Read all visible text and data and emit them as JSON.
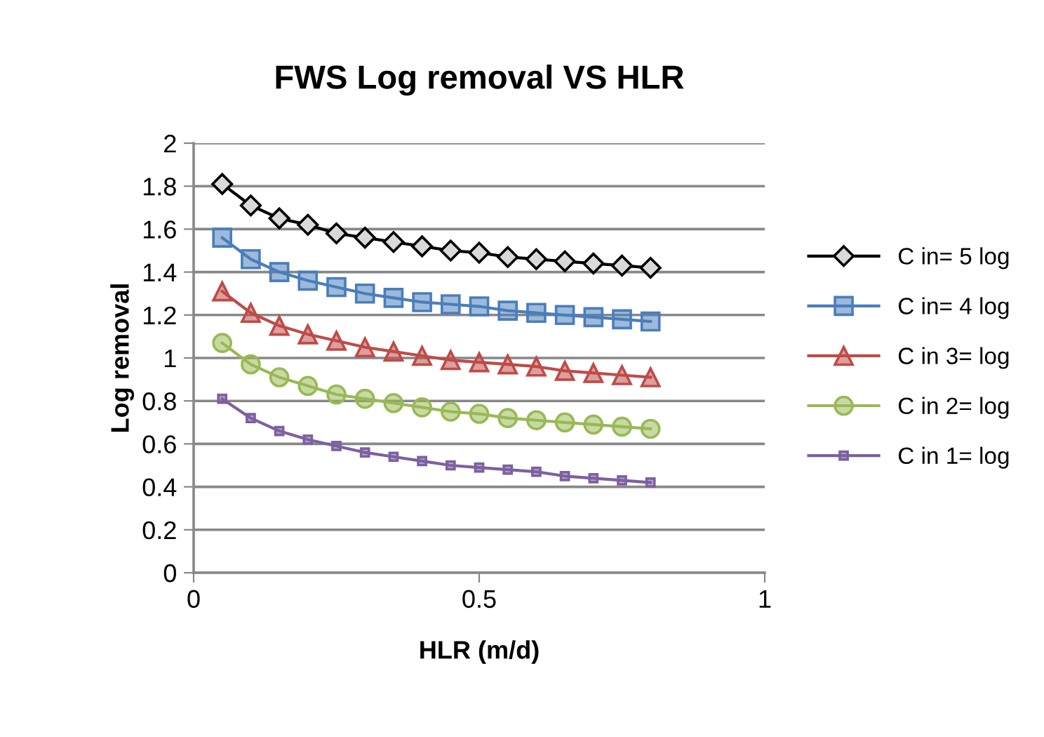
{
  "chart_data": {
    "type": "line",
    "title": "FWS Log removal VS HLR",
    "xlabel": "HLR (m/d)",
    "ylabel": "Log removal",
    "x": [
      0.05,
      0.1,
      0.15,
      0.2,
      0.25,
      0.3,
      0.35,
      0.4,
      0.45,
      0.5,
      0.55,
      0.6,
      0.65,
      0.7,
      0.75,
      0.8
    ],
    "series": [
      {
        "name": "C in= 5 log",
        "color": "#000000",
        "marker": "diamond",
        "values": [
          1.81,
          1.71,
          1.65,
          1.62,
          1.58,
          1.56,
          1.54,
          1.52,
          1.5,
          1.49,
          1.47,
          1.46,
          1.45,
          1.44,
          1.43,
          1.42
        ]
      },
      {
        "name": "C in= 4 log",
        "color": "#4a7ebb",
        "marker": "square",
        "values": [
          1.56,
          1.46,
          1.4,
          1.36,
          1.33,
          1.3,
          1.28,
          1.26,
          1.25,
          1.24,
          1.22,
          1.21,
          1.2,
          1.19,
          1.18,
          1.17
        ]
      },
      {
        "name": "C in 3= log",
        "color": "#be4b48",
        "marker": "triangle",
        "values": [
          1.31,
          1.21,
          1.15,
          1.11,
          1.08,
          1.05,
          1.03,
          1.01,
          0.99,
          0.98,
          0.97,
          0.96,
          0.94,
          0.93,
          0.92,
          0.91
        ]
      },
      {
        "name": "C in 2= log",
        "color": "#98b954",
        "marker": "circle",
        "values": [
          1.07,
          0.97,
          0.91,
          0.87,
          0.83,
          0.81,
          0.79,
          0.77,
          0.75,
          0.74,
          0.72,
          0.71,
          0.7,
          0.69,
          0.68,
          0.67
        ]
      },
      {
        "name": "C in 1= log",
        "color": "#7d60a0",
        "marker": "square",
        "values": [
          0.81,
          0.72,
          0.66,
          0.62,
          0.59,
          0.56,
          0.54,
          0.52,
          0.5,
          0.49,
          0.48,
          0.47,
          0.45,
          0.44,
          0.43,
          0.42
        ]
      }
    ],
    "xlim": [
      0,
      1
    ],
    "xticks": [
      0,
      0.5,
      1
    ],
    "ylim": [
      0,
      2
    ],
    "yticks": [
      0,
      0.2,
      0.4,
      0.6,
      0.8,
      1,
      1.2,
      1.4,
      1.6,
      1.8,
      2
    ],
    "grid": "y",
    "legend": "right"
  }
}
